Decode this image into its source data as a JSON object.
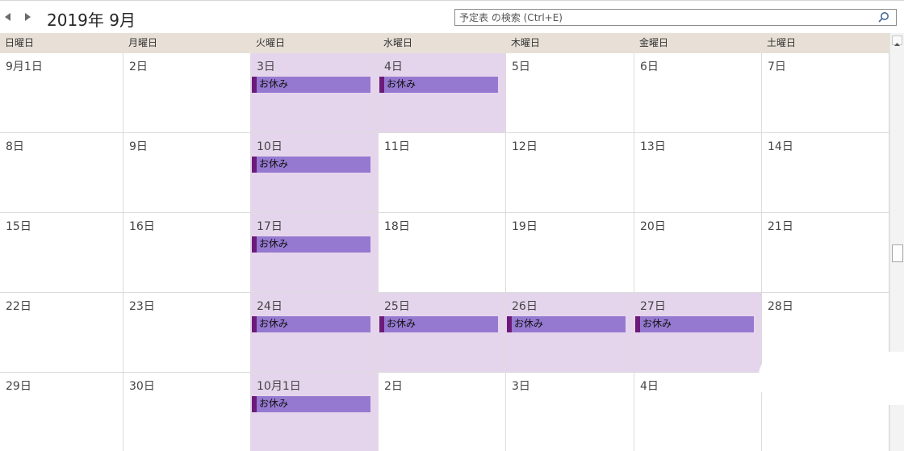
{
  "header": {
    "month_title": "2019年 9月",
    "search_placeholder": "予定表 の検索 (Ctrl+E)",
    "prev_icon": "triangle-left-icon",
    "next_icon": "triangle-right-icon",
    "search_icon": "magnifier-icon"
  },
  "weekdays": [
    "日曜日",
    "月曜日",
    "火曜日",
    "水曜日",
    "木曜日",
    "金曜日",
    "土曜日"
  ],
  "colors": {
    "weekday_bg": "#e8e0d7",
    "event_bg": "#9579d0",
    "event_marker": "#6d1b7b",
    "event_day_highlight": "#e5d5ec"
  },
  "weeks": [
    [
      {
        "label": "9月1日"
      },
      {
        "label": "2日"
      },
      {
        "label": "3日",
        "event": "お休み"
      },
      {
        "label": "4日",
        "event": "お休み"
      },
      {
        "label": "5日"
      },
      {
        "label": "6日"
      },
      {
        "label": "7日"
      }
    ],
    [
      {
        "label": "8日"
      },
      {
        "label": "9日"
      },
      {
        "label": "10日",
        "event": "お休み"
      },
      {
        "label": "11日"
      },
      {
        "label": "12日"
      },
      {
        "label": "13日"
      },
      {
        "label": "14日"
      }
    ],
    [
      {
        "label": "15日"
      },
      {
        "label": "16日"
      },
      {
        "label": "17日",
        "event": "お休み"
      },
      {
        "label": "18日"
      },
      {
        "label": "19日"
      },
      {
        "label": "20日"
      },
      {
        "label": "21日"
      }
    ],
    [
      {
        "label": "22日"
      },
      {
        "label": "23日"
      },
      {
        "label": "24日",
        "event": "お休み"
      },
      {
        "label": "25日",
        "event": "お休み"
      },
      {
        "label": "26日",
        "event": "お休み"
      },
      {
        "label": "27日",
        "event": "お休み"
      },
      {
        "label": "28日"
      }
    ],
    [
      {
        "label": "29日"
      },
      {
        "label": "30日"
      },
      {
        "label": "10月1日",
        "event": "お休み"
      },
      {
        "label": "2日"
      },
      {
        "label": "3日"
      },
      {
        "label": "4日"
      },
      {
        "label": ""
      }
    ]
  ]
}
